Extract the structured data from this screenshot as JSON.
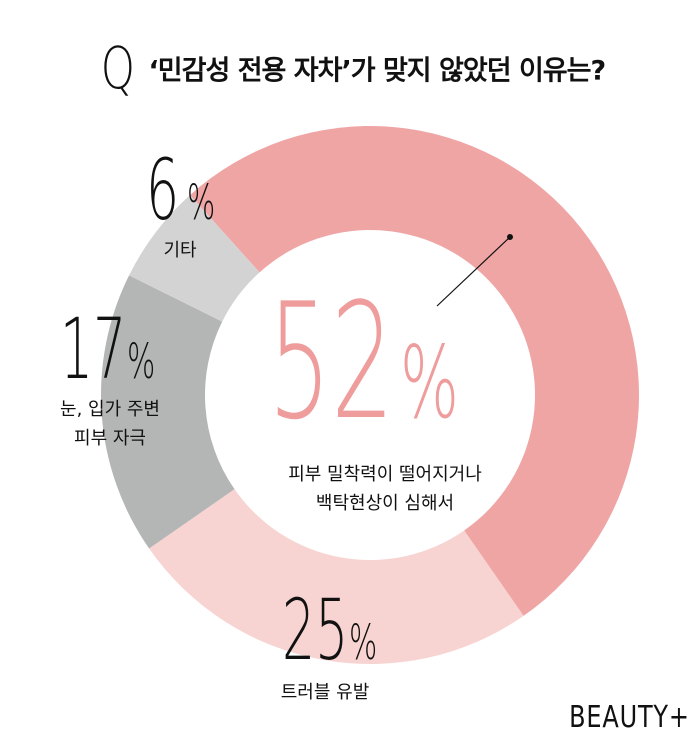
{
  "title": {
    "q": "Q",
    "text": "‘민감성 전용 자차’가 맞지 않았던 이유는?"
  },
  "colors": {
    "main": "#f0a5a5",
    "light": "#f7d4d1",
    "gray": "#b4b5b5",
    "lightgray": "#d2d3d2",
    "main_text": "#ee9c9c"
  },
  "chart_data": {
    "type": "pie",
    "style": "donut",
    "categories": [
      "피부 밀착력이 떨어지거나 백탁현상이 심해서",
      "트러블 유발",
      "눈, 입가 주변 피부 자극",
      "기타"
    ],
    "values": [
      52,
      25,
      17,
      6
    ],
    "unit": "%",
    "labels": [
      {
        "value": "52",
        "unit": "%",
        "line1": "피부 밀착력이 떨어지거나",
        "line2": "백탁현상이 심해서"
      },
      {
        "value": "25",
        "unit": "%",
        "line1": "트러블 유발",
        "line2": ""
      },
      {
        "value": "17",
        "unit": "%",
        "line1": "눈, 입가 주변",
        "line2": "피부 자극"
      },
      {
        "value": "6",
        "unit": "%",
        "line1": "기타",
        "line2": ""
      }
    ]
  },
  "brand": "BEAUTY+"
}
